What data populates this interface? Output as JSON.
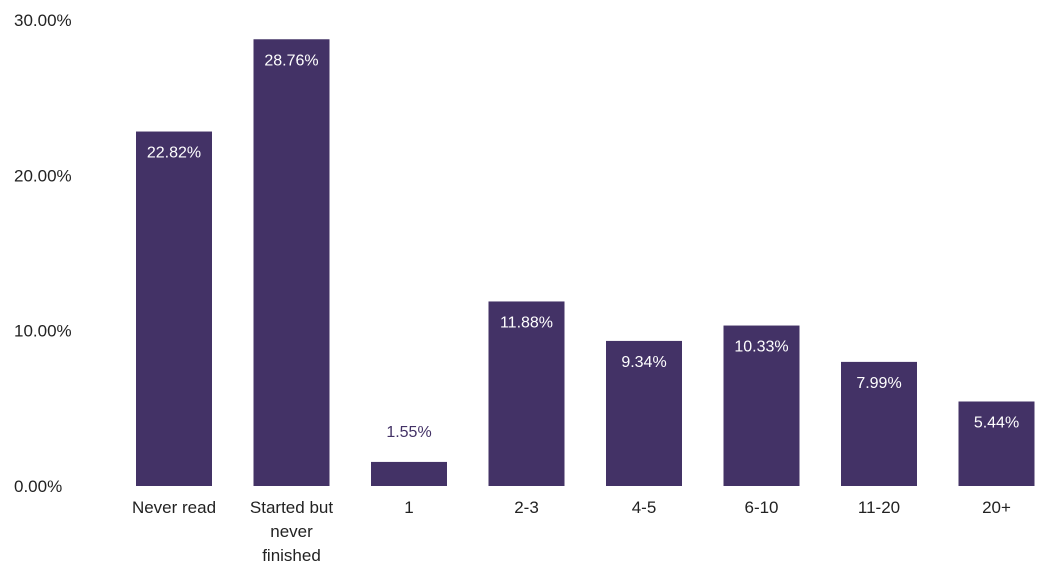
{
  "chart_data": {
    "type": "bar",
    "categories": [
      [
        "Never read"
      ],
      [
        "Started but",
        "never",
        "finished"
      ],
      [
        "1"
      ],
      [
        "2-3"
      ],
      [
        "4-5"
      ],
      [
        "6-10"
      ],
      [
        "11-20"
      ],
      [
        "20+"
      ]
    ],
    "values": [
      22.82,
      28.76,
      1.55,
      11.88,
      9.34,
      10.33,
      7.99,
      5.44
    ],
    "data_labels": [
      "22.82%",
      "28.76%",
      "1.55%",
      "11.88%",
      "9.34%",
      "10.33%",
      "7.99%",
      "5.44%"
    ],
    "y_ticks": [
      0,
      10,
      20,
      30
    ],
    "y_tick_labels": [
      "0.00%",
      "10.00%",
      "20.00%",
      "30.00%"
    ],
    "ylim": [
      0,
      30
    ],
    "grid": false,
    "legend": "none",
    "colors": {
      "bar": "#433266",
      "label_inside": "#ffffff",
      "label_outside": "#433266"
    }
  }
}
